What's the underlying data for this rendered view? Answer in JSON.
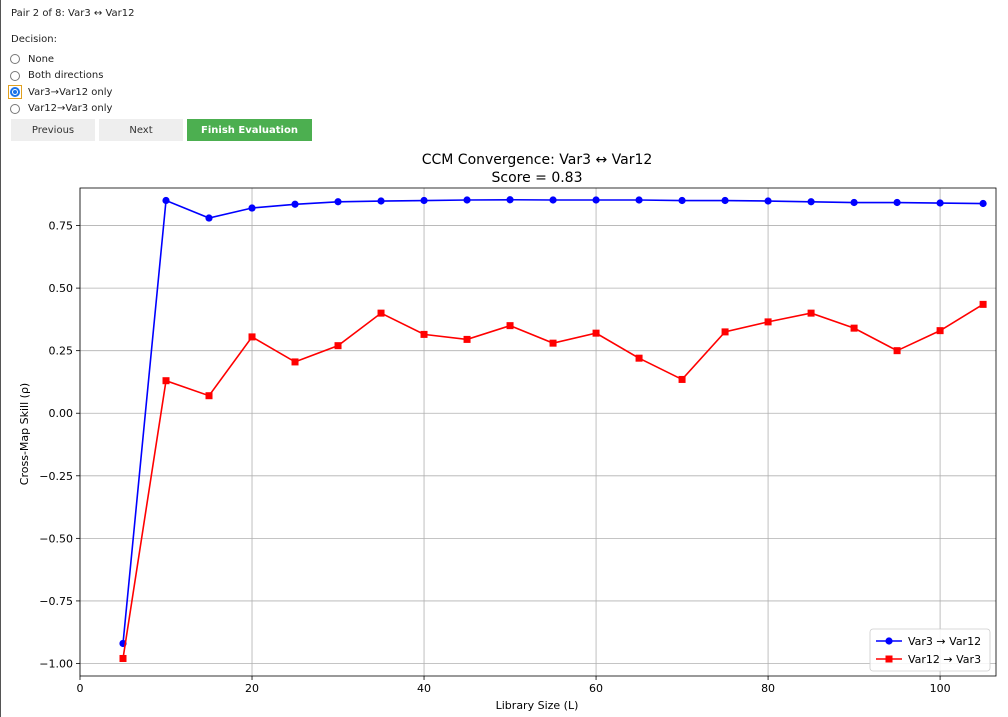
{
  "header": {
    "pair_title": "Pair 2 of 8: Var3 ↔ Var12"
  },
  "decision": {
    "label": "Decision:",
    "options": [
      {
        "label": "None",
        "checked": false
      },
      {
        "label": "Both directions",
        "checked": false
      },
      {
        "label": "Var3→Var12 only",
        "checked": true
      },
      {
        "label": "Var12→Var3 only",
        "checked": false
      }
    ]
  },
  "buttons": {
    "previous": "Previous",
    "next": "Next",
    "finish": "Finish Evaluation"
  },
  "colors": {
    "finish_button": "#4caf50",
    "series1": "#0000ff",
    "series2": "#ff0000"
  },
  "chart_data": {
    "type": "line",
    "title": "CCM Convergence: Var3 ↔ Var12",
    "subtitle": "Score = 0.83",
    "xlabel": "Library Size (L)",
    "ylabel": "Cross-Map Skill (ρ)",
    "xlim": [
      0,
      106.5
    ],
    "ylim": [
      -1.05,
      0.9
    ],
    "xticks": [
      0,
      20,
      40,
      60,
      80,
      100
    ],
    "yticks": [
      0.75,
      0.5,
      0.25,
      0.0,
      -0.25,
      -0.5,
      -0.75,
      -1.0
    ],
    "xtick_labels": [
      "0",
      "20",
      "40",
      "60",
      "80",
      "100"
    ],
    "ytick_labels": [
      "0.75",
      "0.50",
      "0.25",
      "0.00",
      "−0.25",
      "−0.50",
      "−0.75",
      "−1.00"
    ],
    "grid": true,
    "legend_position": "lower-right",
    "x": [
      5,
      10,
      15,
      20,
      25,
      30,
      35,
      40,
      45,
      50,
      55,
      60,
      65,
      70,
      75,
      80,
      85,
      90,
      95,
      100,
      105
    ],
    "series": [
      {
        "name": "Var3 → Var12",
        "marker": "circle",
        "values": [
          -0.92,
          0.85,
          0.78,
          0.82,
          0.835,
          0.845,
          0.848,
          0.85,
          0.852,
          0.853,
          0.852,
          0.852,
          0.852,
          0.85,
          0.85,
          0.848,
          0.845,
          0.842,
          0.842,
          0.84,
          0.838
        ]
      },
      {
        "name": "Var12 → Var3",
        "marker": "square",
        "values": [
          -0.98,
          0.13,
          0.07,
          0.305,
          0.205,
          0.27,
          0.4,
          0.315,
          0.295,
          0.35,
          0.28,
          0.32,
          0.22,
          0.135,
          0.325,
          0.365,
          0.4,
          0.34,
          0.25,
          0.33,
          0.435
        ]
      }
    ]
  }
}
